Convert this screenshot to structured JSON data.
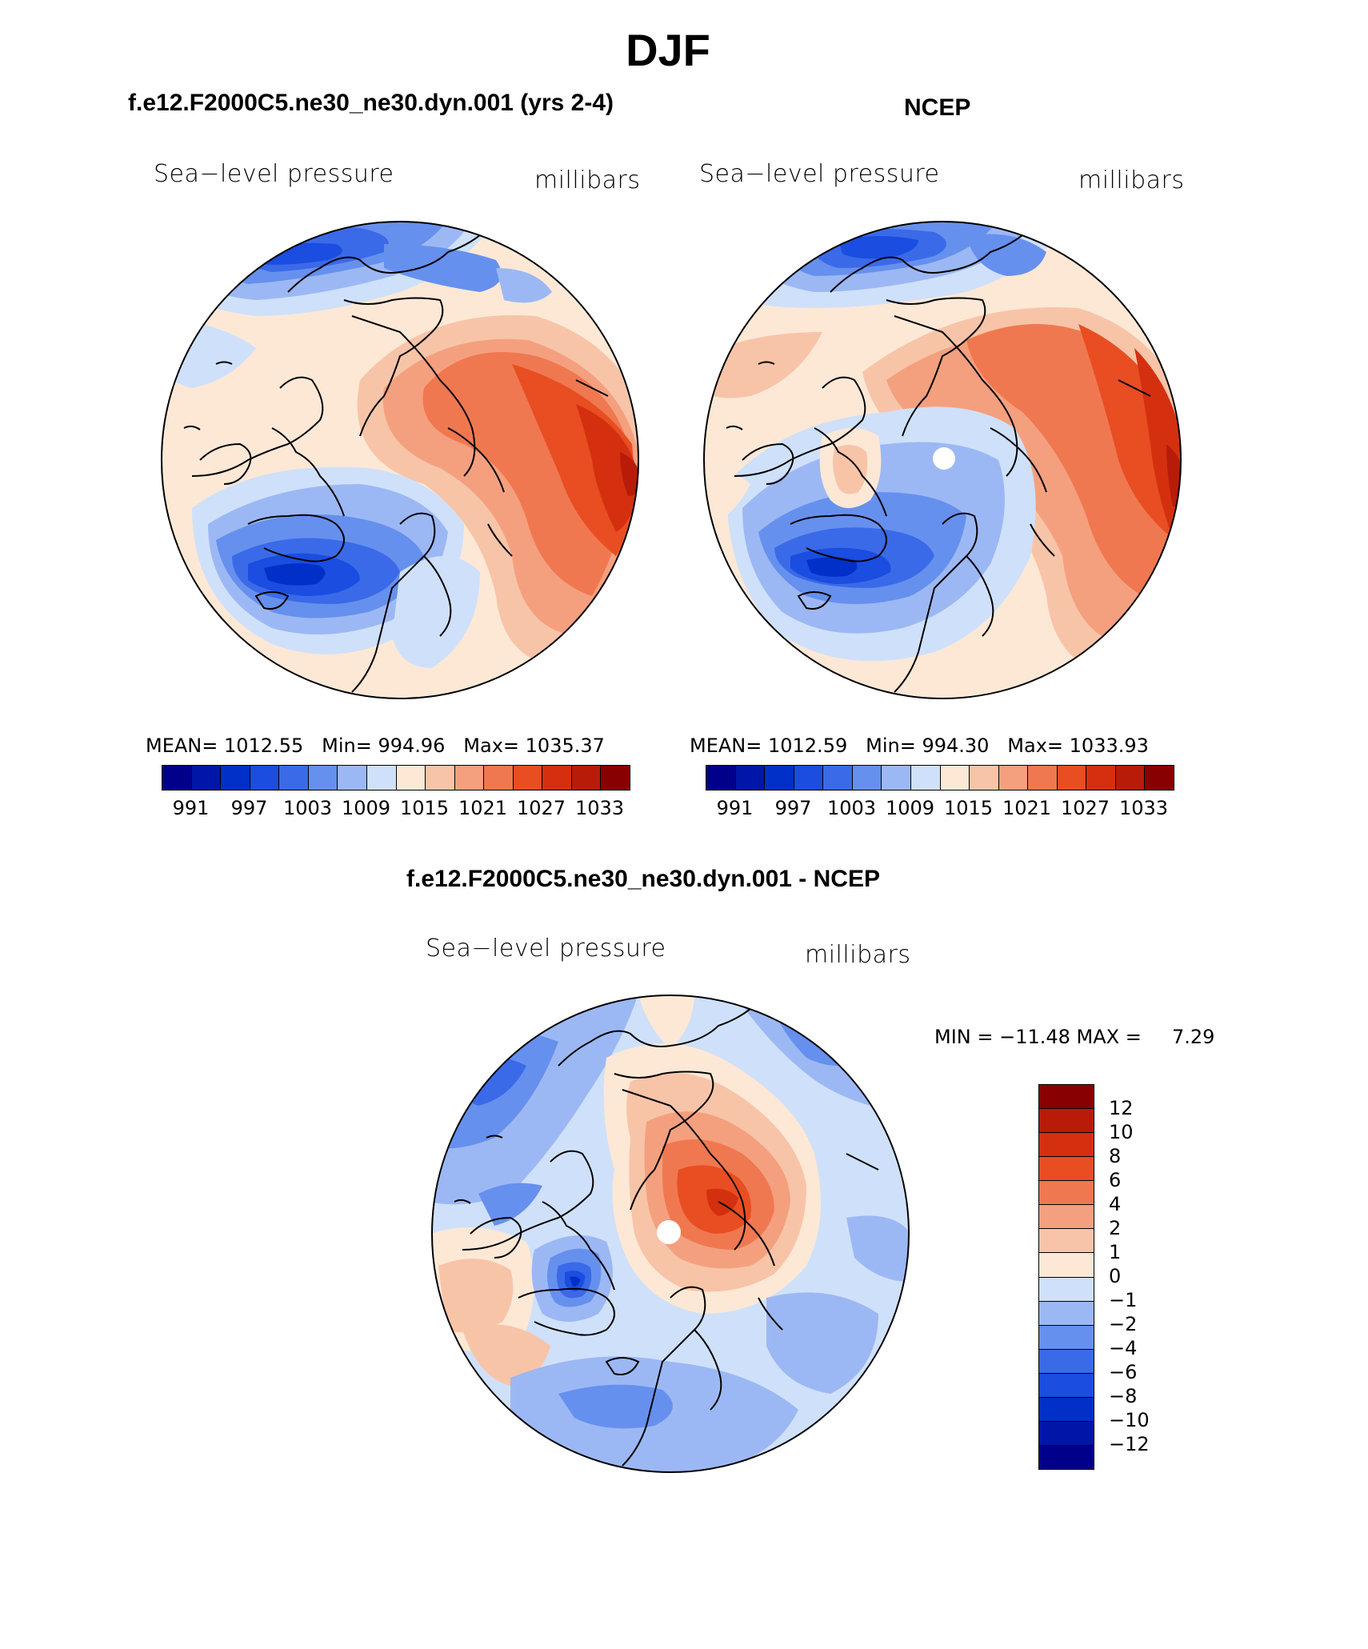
{
  "title": "DJF",
  "panels": [
    {
      "id": "model",
      "title": "f.e12.F2000C5.ne30_ne30.dyn.001 (yrs 2-4)",
      "left_label": "Sea−level pressure",
      "right_label": "millibars",
      "stats": "MEAN= 1012.55   Min= 994.96   Max= 1035.37"
    },
    {
      "id": "obs",
      "title": "NCEP",
      "left_label": "Sea−level pressure",
      "right_label": "millibars",
      "stats": "MEAN= 1012.59   Min= 994.30   Max= 1033.93"
    },
    {
      "id": "diff",
      "title": "f.e12.F2000C5.ne30_ne30.dyn.001 - NCEP",
      "left_label": "Sea−level pressure",
      "right_label": "millibars",
      "stats": "MIN = −11.48 MAX =     7.29"
    }
  ],
  "abs_colorbar": {
    "colors": [
      "#00008a",
      "#0016a8",
      "#0030c8",
      "#1a4de0",
      "#3a6ae8",
      "#6690ee",
      "#9cb8f4",
      "#cfe0fa",
      "#fde8d6",
      "#f8c4a8",
      "#f4a07e",
      "#f07850",
      "#e84e22",
      "#d43010",
      "#b81c08",
      "#880000"
    ],
    "tick_labels": [
      "991",
      "997",
      "1003",
      "1009",
      "1015",
      "1021",
      "1027",
      "1033"
    ]
  },
  "diff_colorbar": {
    "colors": [
      "#880000",
      "#b81c08",
      "#d43010",
      "#e84e22",
      "#f07850",
      "#f4a07e",
      "#f8c4a8",
      "#fde8d6",
      "#cfe0fa",
      "#9cb8f4",
      "#6690ee",
      "#3a6ae8",
      "#1a4de0",
      "#0030c8",
      "#0016a8",
      "#00008a"
    ],
    "tick_labels": [
      "12",
      "10",
      "8",
      "6",
      "4",
      "2",
      "1",
      "0",
      "−1",
      "−2",
      "−4",
      "−6",
      "−8",
      "−10",
      "−12"
    ]
  }
}
